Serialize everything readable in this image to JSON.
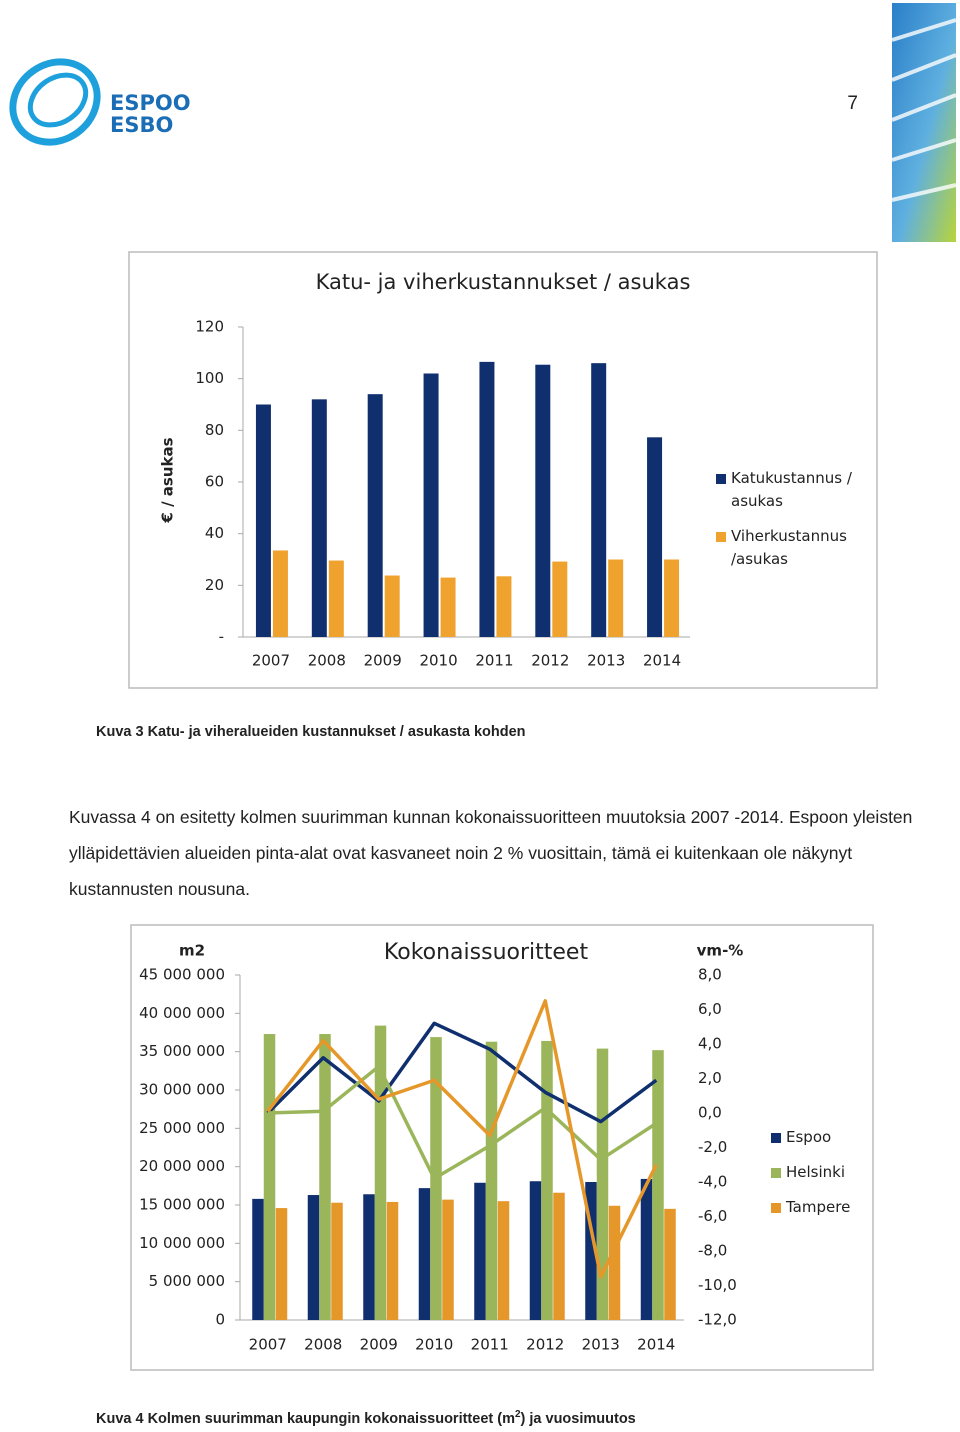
{
  "logo": {
    "line1": "ESPOO",
    "line2": "ESBO"
  },
  "page_number": "7",
  "chart_data": [
    {
      "type": "bar",
      "title": "Katu- ja viherkustannukset / asukas",
      "ylabel": "€ / asukas",
      "categories": [
        "2007",
        "2008",
        "2009",
        "2010",
        "2011",
        "2012",
        "2013",
        "2014"
      ],
      "series": [
        {
          "name": "Katukustannus / asukas",
          "color": "#0f2f6e",
          "values": [
            90,
            92,
            94,
            102,
            106.5,
            105.4,
            106,
            77.3
          ]
        },
        {
          "name": "Viherkustannus /asukas",
          "color": "#f0a22e",
          "values": [
            33.5,
            29.6,
            23.8,
            23,
            23.5,
            29.2,
            30,
            30
          ]
        }
      ],
      "ylim": [
        0,
        120
      ],
      "yticks": [
        {
          "value": 0,
          "label": "-"
        },
        20,
        40,
        60,
        80,
        100,
        120
      ],
      "legend": "right"
    },
    {
      "type": "bar_line",
      "title": "Kokonaissuoritteet",
      "ylabel": "m2",
      "y2label": "vm-%",
      "categories": [
        "2007",
        "2008",
        "2009",
        "2010",
        "2011",
        "2012",
        "2013",
        "2014"
      ],
      "series": [
        {
          "name": "Espoo",
          "color": "#0f2f6e",
          "values": [
            15800000,
            16300000,
            16400000,
            17200000,
            17900000,
            18100000,
            18000000,
            18400000
          ],
          "values_y2": [
            0.0,
            3.2,
            0.7,
            5.2,
            3.7,
            1.2,
            -0.5,
            1.9
          ]
        },
        {
          "name": "Helsinki",
          "color": "#9bb65a",
          "values": [
            37300000,
            37300000,
            38400000,
            36900000,
            36300000,
            36400000,
            35400000,
            35200000
          ],
          "values_y2": [
            0.0,
            0.1,
            2.7,
            -3.8,
            -1.9,
            0.3,
            -2.7,
            -0.6
          ]
        },
        {
          "name": "Tampere",
          "color": "#e5972a",
          "values": [
            14600000,
            15300000,
            15400000,
            15700000,
            15500000,
            16600000,
            14900000,
            14500000
          ],
          "values_y2": [
            0.1,
            4.2,
            0.8,
            1.9,
            -1.3,
            6.5,
            -9.5,
            -3.0
          ]
        }
      ],
      "ylim": [
        0,
        45000000
      ],
      "yticks": [
        0,
        {
          "value": 5000000,
          "label": "5 000 000"
        },
        {
          "value": 10000000,
          "label": "10 000 000"
        },
        {
          "value": 15000000,
          "label": "15 000 000"
        },
        {
          "value": 20000000,
          "label": "20 000 000"
        },
        {
          "value": 25000000,
          "label": "25 000 000"
        },
        {
          "value": 30000000,
          "label": "30 000 000"
        },
        {
          "value": 35000000,
          "label": "35 000 000"
        },
        {
          "value": 40000000,
          "label": "40 000 000"
        },
        {
          "value": 45000000,
          "label": "45 000 000"
        }
      ],
      "y2lim": [
        -12,
        8
      ],
      "y2ticks": [
        {
          "value": -12,
          "label": "-12,0"
        },
        {
          "value": -10,
          "label": "-10,0"
        },
        {
          "value": -8,
          "label": "-8,0"
        },
        {
          "value": -6,
          "label": "-6,0"
        },
        {
          "value": -4,
          "label": "-4,0"
        },
        {
          "value": -2,
          "label": "-2,0"
        },
        {
          "value": 0,
          "label": "0,0"
        },
        {
          "value": 2,
          "label": "2,0"
        },
        {
          "value": 4,
          "label": "4,0"
        },
        {
          "value": 6,
          "label": "6,0"
        },
        {
          "value": 8,
          "label": "8,0"
        }
      ],
      "legend": "right"
    }
  ],
  "captions": [
    {
      "text": "Kuva 3 Katu- ja viheralueiden kustannukset / asukasta kohden"
    },
    {
      "text": "Kuva 4 Kolmen suurimman kaupungin kokonaissuoritteet (m",
      "sup": "2",
      "after": ")  ja vuosimuutos"
    }
  ],
  "paragraph": "Kuvassa 4 on esitetty kolmen suurimman kunnan kokonaissuoritteen muutoksia 2007 -2014. Espoon yleisten ylläpidettävien alueiden pinta-alat ovat kasvaneet noin 2 % vuosittain, tämä ei kuitenkaan ole näkynyt kustannusten nousuna."
}
